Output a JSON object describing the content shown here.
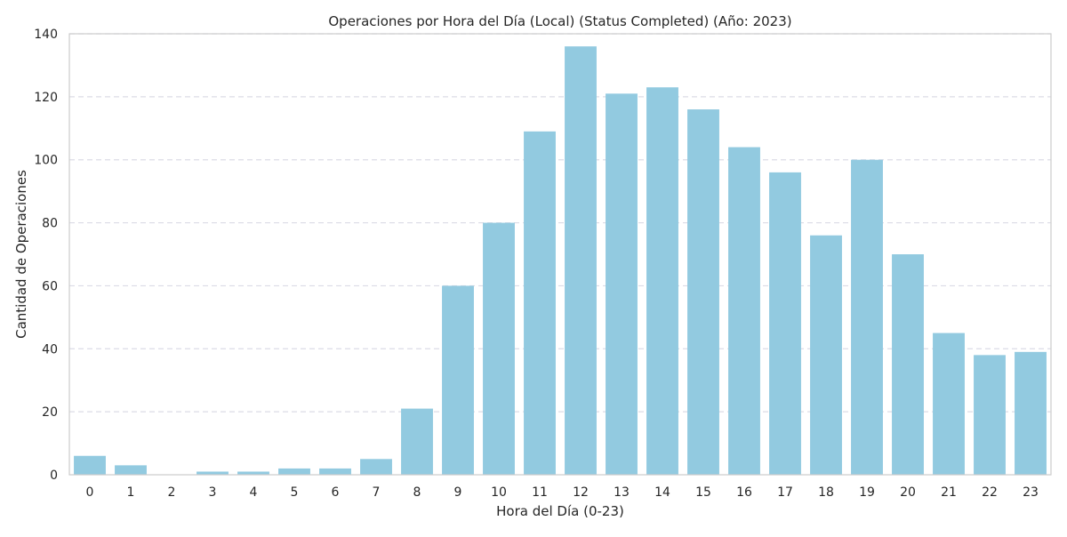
{
  "chart_data": {
    "type": "bar",
    "title": "Operaciones por Hora del Día (Local) (Status Completed) (Año: 2023)",
    "xlabel": "Hora del Día (0-23)",
    "ylabel": "Cantidad de Operaciones",
    "categories": [
      "0",
      "1",
      "2",
      "3",
      "4",
      "5",
      "6",
      "7",
      "8",
      "9",
      "10",
      "11",
      "12",
      "13",
      "14",
      "15",
      "16",
      "17",
      "18",
      "19",
      "20",
      "21",
      "22",
      "23"
    ],
    "values": [
      6,
      3,
      0,
      1,
      1,
      2,
      2,
      5,
      21,
      60,
      80,
      109,
      136,
      121,
      123,
      116,
      104,
      96,
      76,
      100,
      70,
      45,
      38,
      39
    ],
    "ylim": [
      0,
      140
    ],
    "yticks": [
      0,
      20,
      40,
      60,
      80,
      100,
      120,
      140
    ],
    "grid": "y-dashed",
    "bar_color": "#92cae0",
    "grid_color": "#dcdce6",
    "axis_color": "#cccccc"
  }
}
